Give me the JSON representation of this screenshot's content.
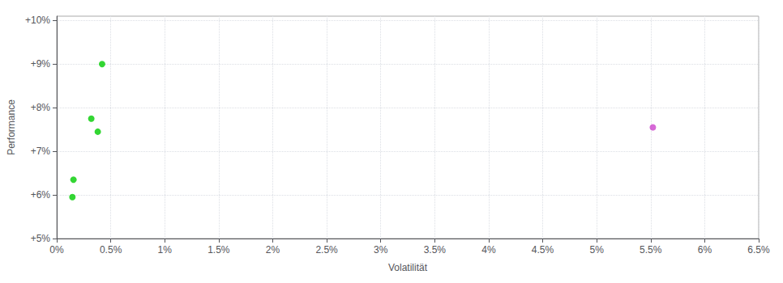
{
  "chart_data": {
    "type": "scatter",
    "xlabel": "Volatilität",
    "ylabel": "Performance",
    "x": [
      0.0042,
      0.0032,
      0.0038,
      0.00155,
      0.00145,
      0.0552
    ],
    "values": [
      0.09,
      0.0775,
      0.0745,
      0.0635,
      0.0595,
      0.0755
    ],
    "colors": [
      "#00cc00",
      "#00cc00",
      "#00cc00",
      "#00cc00",
      "#00cc00",
      "#cc44cc"
    ],
    "xlim": [
      0.0,
      0.065
    ],
    "ylim": [
      0.05,
      0.101
    ],
    "xticks": [
      {
        "value": 0.0,
        "label": "0%"
      },
      {
        "value": 0.005,
        "label": "0.5%"
      },
      {
        "value": 0.01,
        "label": "1%"
      },
      {
        "value": 0.015,
        "label": "1.5%"
      },
      {
        "value": 0.02,
        "label": "2%"
      },
      {
        "value": 0.025,
        "label": "2.5%"
      },
      {
        "value": 0.03,
        "label": "3%"
      },
      {
        "value": 0.035,
        "label": "3.5%"
      },
      {
        "value": 0.04,
        "label": "4%"
      },
      {
        "value": 0.045,
        "label": "4.5%"
      },
      {
        "value": 0.05,
        "label": "5%"
      },
      {
        "value": 0.055,
        "label": "5.5%"
      },
      {
        "value": 0.06,
        "label": "6%"
      },
      {
        "value": 0.065,
        "label": "6.5%"
      }
    ],
    "yticks": [
      {
        "value": 0.05,
        "label": "+5%"
      },
      {
        "value": 0.06,
        "label": "+6%"
      },
      {
        "value": 0.07,
        "label": "+7%"
      },
      {
        "value": 0.08,
        "label": "+8%"
      },
      {
        "value": 0.09,
        "label": "+9%"
      },
      {
        "value": 0.1,
        "label": "+10%"
      }
    ],
    "grid": true
  }
}
